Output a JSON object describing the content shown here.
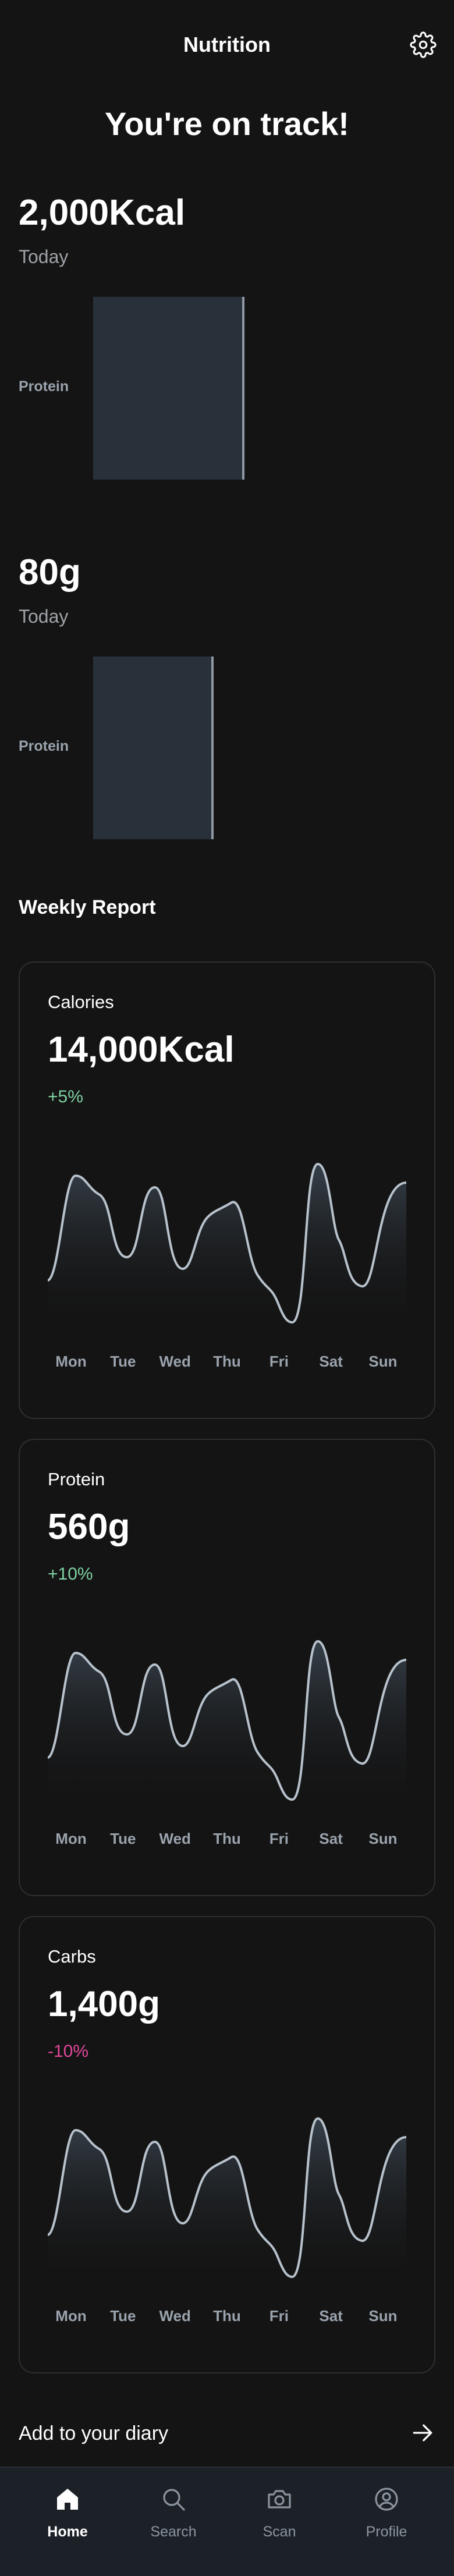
{
  "header": {
    "title": "Nutrition",
    "settings_icon": "gear-icon"
  },
  "hero": {
    "message": "You're on track!"
  },
  "calories_today": {
    "value": "2,000Kcal",
    "period": "Today",
    "bar_label": "Protein",
    "bar_fill": 0.44
  },
  "protein_today": {
    "value": "80g",
    "period": "Today",
    "bar_label": "Protein",
    "bar_fill": 0.35
  },
  "weekly_report": {
    "title": "Weekly Report",
    "days": [
      "Mon",
      "Tue",
      "Wed",
      "Thu",
      "Fri",
      "Sat",
      "Sun"
    ],
    "cards": [
      {
        "title": "Calories",
        "value": "14,000Kcal",
        "change": "+5%",
        "change_color": "#7ed1a0"
      },
      {
        "title": "Protein",
        "value": "560g",
        "change": "+10%",
        "change_color": "#7ed1a0"
      },
      {
        "title": "Carbs",
        "value": "1,400g",
        "change": "-10%",
        "change_color": "#e0479a"
      }
    ]
  },
  "diary": {
    "label": "Add to your diary",
    "icon": "arrow-right-icon"
  },
  "nav": {
    "items": [
      {
        "label": "Home",
        "icon": "home-icon",
        "active": true
      },
      {
        "label": "Search",
        "icon": "search-icon",
        "active": false
      },
      {
        "label": "Scan",
        "icon": "camera-icon",
        "active": false
      },
      {
        "label": "Profile",
        "icon": "profile-icon",
        "active": false
      }
    ]
  },
  "colors": {
    "background": "#141414",
    "card_border": "#2f2f2f",
    "bar_fill": "#283039",
    "nav_background": "#1c2128",
    "line": "#b8c2cc"
  }
}
